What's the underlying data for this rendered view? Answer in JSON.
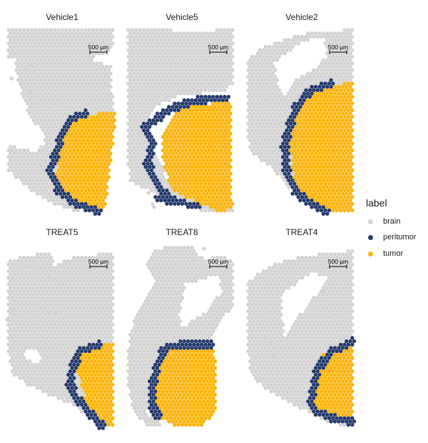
{
  "chart_data": {
    "type": "scatter",
    "description_note": "",
    "scale_bar_label": "500 µm",
    "legend": {
      "title": "label",
      "entries": [
        {
          "name": "brain",
          "color": "#d3d3d3"
        },
        {
          "name": "peritumor",
          "color": "#243a6b"
        },
        {
          "name": "tumor",
          "color": "#fbb40b"
        }
      ]
    },
    "panels": [
      {
        "title": "Vehicle1"
      },
      {
        "title": "Vehicle5"
      },
      {
        "title": "Vehicle2"
      },
      {
        "title": "TREAT5"
      },
      {
        "title": "TREAT8"
      },
      {
        "title": "TREAT4"
      }
    ]
  }
}
